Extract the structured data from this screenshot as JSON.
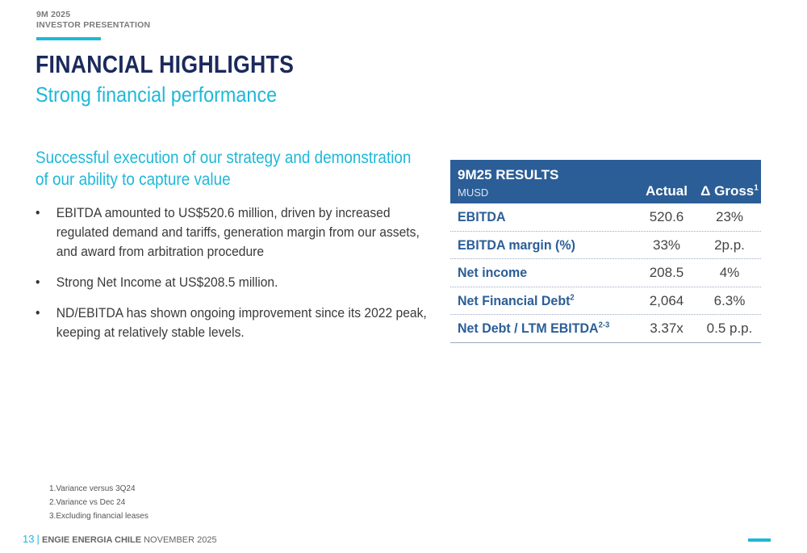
{
  "header": {
    "kicker_line1": "9M 2025",
    "kicker_line2": "INVESTOR PRESENTATION",
    "title": "FINANCIAL HIGHLIGHTS",
    "subtitle": "Strong financial performance"
  },
  "content": {
    "heading": "Successful execution of our strategy and demonstration of our ability to capture value",
    "bullets": [
      "EBITDA amounted to US$520.6 million, driven by increased regulated demand and tariffs, generation margin from our assets, and award from arbitration procedure",
      "Strong Net Income at US$208.5 million.",
      "ND/EBITDA has shown ongoing improvement since its 2022 peak, keeping at relatively stable levels."
    ],
    "bullet_glyph": "•"
  },
  "results": {
    "title": "9M25 RESULTS",
    "unit": "MUSD",
    "col_actual": "Actual",
    "col_gross": "Δ Gross",
    "col_gross_sup": "1",
    "rows": [
      {
        "label": "EBITDA",
        "sup": "",
        "actual": "520.6",
        "gross": "23%"
      },
      {
        "label": "EBITDA margin (%)",
        "sup": "",
        "actual": "33%",
        "gross": "2p.p."
      },
      {
        "label": "Net income",
        "sup": "",
        "actual": "208.5",
        "gross": "4%"
      },
      {
        "label": "Net Financial Debt",
        "sup": "2",
        "actual": "2,064",
        "gross": "6.3%"
      },
      {
        "label": "Net Debt / LTM EBITDA",
        "sup": "2-3",
        "actual": "3.37x",
        "gross": "0.5 p.p."
      }
    ]
  },
  "footnotes": [
    "1.Variance versus 3Q24",
    "2.Variance vs Dec 24",
    "3.Excluding financial leases"
  ],
  "footer": {
    "page_number": "13",
    "separator": "|",
    "brand": "ENGIE ENERGIA CHILE",
    "date": "NOVEMBER 2025"
  },
  "colors": {
    "accent": "#1fb8d8",
    "navy": "#1b2a5c",
    "table_header": "#2b5e97"
  }
}
